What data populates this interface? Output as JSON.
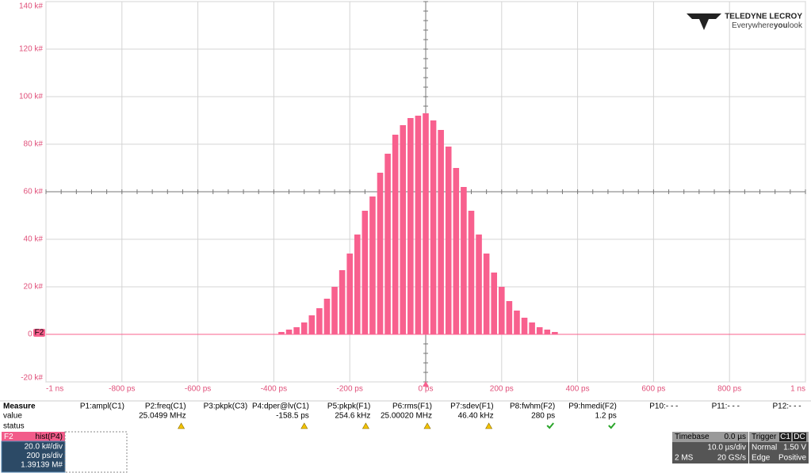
{
  "chart_data": {
    "type": "histogram",
    "color": "#f8608e",
    "grid": true,
    "xlim": [
      -1000,
      1000
    ],
    "ylim": [
      -20,
      140
    ],
    "xticks": [
      {
        "value": -1000,
        "label": "-1 ns"
      },
      {
        "value": -800,
        "label": "-800 ps"
      },
      {
        "value": -600,
        "label": "-600 ps"
      },
      {
        "value": -400,
        "label": "-400 ps"
      },
      {
        "value": -200,
        "label": "-200 ps"
      },
      {
        "value": 0,
        "label": "0 ps"
      },
      {
        "value": 200,
        "label": "200 ps"
      },
      {
        "value": 400,
        "label": "400 ps"
      },
      {
        "value": 600,
        "label": "600 ps"
      },
      {
        "value": 800,
        "label": "800 ps"
      },
      {
        "value": 1000,
        "label": "1 ns"
      }
    ],
    "yticks": [
      {
        "value": -20,
        "label": "-20 k#"
      },
      {
        "value": 0,
        "label": "0 k#"
      },
      {
        "value": 20,
        "label": "20 k#"
      },
      {
        "value": 40,
        "label": "40 k#"
      },
      {
        "value": 60,
        "label": "60 k#"
      },
      {
        "value": 80,
        "label": "80 k#"
      },
      {
        "value": 100,
        "label": "100 k#"
      },
      {
        "value": 120,
        "label": "120 k#"
      },
      {
        "value": 140,
        "label": "140 k#"
      }
    ],
    "bins": [
      -390,
      -370,
      -350,
      -330,
      -310,
      -290,
      -270,
      -250,
      -230,
      -210,
      -190,
      -170,
      -150,
      -130,
      -110,
      -90,
      -70,
      -50,
      -30,
      -10,
      10,
      30,
      50,
      70,
      90,
      110,
      130,
      150,
      170,
      190,
      210,
      230,
      250,
      270,
      290,
      310,
      330,
      350
    ],
    "values": [
      1,
      2,
      3,
      5,
      8,
      11,
      15,
      20,
      27,
      34,
      42,
      52,
      58,
      68,
      76,
      84,
      88,
      91,
      92,
      93,
      90,
      86,
      79,
      70,
      62,
      52,
      42,
      34,
      26,
      20,
      14,
      10,
      7,
      5,
      3,
      2,
      1
    ],
    "trace_label": "F2"
  },
  "logo": {
    "brand": "TELEDYNE LECROY",
    "tagline_a": "Everywhere",
    "tagline_b": "you",
    "tagline_c": "look"
  },
  "measure": {
    "header": "Measure",
    "row_value": "value",
    "row_status": "status",
    "params": [
      {
        "label": "P1:ampl(C1)",
        "value": null,
        "status": null
      },
      {
        "label": "P2:freq(C1)",
        "value": "25.0499 MHz",
        "status": "warning"
      },
      {
        "label": "P3:pkpk(C3)",
        "value": null,
        "status": null
      },
      {
        "label": "P4:dper@lv(C1)",
        "value": "-158.5 ps",
        "status": "warning"
      },
      {
        "label": "P5:pkpk(F1)",
        "value": "254.6 kHz",
        "status": "warning"
      },
      {
        "label": "P6:rms(F1)",
        "value": "25.00020 MHz",
        "status": "warning"
      },
      {
        "label": "P7:sdev(F1)",
        "value": "46.40 kHz",
        "status": "warning"
      },
      {
        "label": "P8:fwhm(F2)",
        "value": "280 ps",
        "status": "ok"
      },
      {
        "label": "P9:hmedi(F2)",
        "value": "1.2 ps",
        "status": "ok"
      },
      {
        "label": "P10:- - -",
        "value": null,
        "status": null
      },
      {
        "label": "P11:- - -",
        "value": null,
        "status": null
      },
      {
        "label": "P12:- - -",
        "value": null,
        "status": null
      }
    ]
  },
  "trace_panel": {
    "name": "F2",
    "func": "hist(P4)",
    "vdiv": "20.0 k#/div",
    "hdiv": "200 ps/div",
    "total": "1.39139 M#"
  },
  "timebase": {
    "title": "Timebase",
    "delay": "0.0 µs",
    "tdiv": "10.0 µs/div",
    "samples": "2 MS",
    "rate": "20 GS/s"
  },
  "trigger": {
    "title": "Trigger",
    "source": "C1",
    "coupling": "DC",
    "mode": "Normal",
    "level": "1.50 V",
    "kind": "Edge",
    "slope": "Positive"
  }
}
